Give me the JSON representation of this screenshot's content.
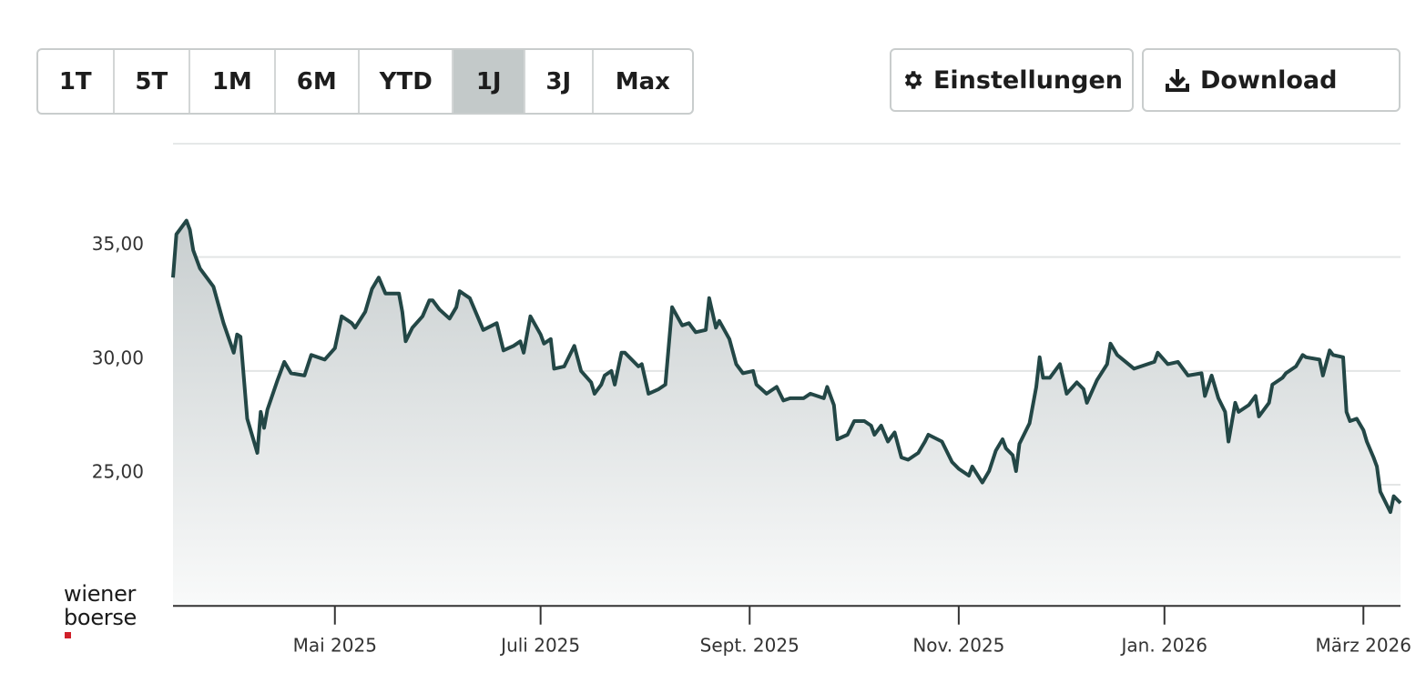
{
  "toolbar": {
    "ranges": [
      "1T",
      "5T",
      "1M",
      "6M",
      "YTD",
      "1J",
      "3J",
      "Max"
    ],
    "active_range": "1J",
    "settings": "Einstellungen",
    "download": "Download"
  },
  "logo": {
    "line1": "wiener",
    "line2": "boerse"
  },
  "chart_data": {
    "type": "line",
    "color": "#234746",
    "area": true,
    "grid": true,
    "x": [
      0,
      1,
      4,
      5,
      6,
      8,
      11,
      12,
      15,
      18,
      19,
      20,
      22,
      25,
      26,
      27,
      28,
      31,
      33,
      35,
      39,
      41,
      45,
      48,
      50,
      53,
      54,
      57,
      59,
      61,
      63,
      67,
      68,
      69,
      71,
      74,
      76,
      77,
      79,
      82,
      84,
      85,
      88,
      90,
      92,
      96,
      98,
      101,
      103,
      104,
      106,
      109,
      110,
      112,
      113,
      116,
      119,
      121,
      124,
      125,
      127,
      128,
      130,
      131,
      133,
      134,
      138,
      139,
      141,
      144,
      146,
      148,
      151,
      153,
      155,
      158,
      159,
      161,
      162,
      165,
      167,
      169,
      172,
      173,
      176,
      179,
      181,
      183,
      187,
      189,
      193,
      194,
      196,
      197,
      200,
      202,
      205,
      207,
      208,
      210,
      212,
      214,
      216,
      218,
      221,
      223,
      224,
      228,
      231,
      233,
      236,
      237,
      240,
      242,
      244,
      246,
      247,
      249,
      250,
      251,
      254,
      256,
      257,
      258,
      260,
      263,
      265,
      268,
      270,
      271,
      274,
      277,
      278,
      280,
      285,
      291,
      292,
      295,
      298,
      301,
      305,
      306,
      308,
      310,
      312,
      313,
      315,
      316,
      319,
      321,
      322,
      325,
      326,
      329,
      330,
      333,
      335,
      336,
      340,
      341,
      343,
      344,
      347,
      348,
      349,
      351,
      353,
      354,
      356,
      357,
      358,
      361,
      362,
      364
    ],
    "values": [
      34.1,
      36.0,
      36.6,
      36.2,
      35.3,
      34.5,
      33.9,
      33.7,
      32.1,
      30.8,
      31.6,
      31.5,
      27.9,
      26.4,
      28.2,
      27.5,
      28.3,
      29.6,
      30.4,
      29.9,
      29.8,
      30.7,
      30.5,
      31.0,
      32.4,
      32.1,
      31.9,
      32.6,
      33.6,
      34.1,
      33.4,
      33.4,
      32.6,
      31.3,
      31.9,
      32.4,
      33.1,
      33.1,
      32.7,
      32.3,
      32.8,
      33.5,
      33.2,
      32.5,
      31.8,
      32.1,
      30.9,
      31.1,
      31.3,
      30.8,
      32.4,
      31.6,
      31.2,
      31.4,
      30.1,
      30.2,
      31.1,
      30.0,
      29.5,
      29.0,
      29.4,
      29.8,
      30.0,
      29.4,
      30.8,
      30.8,
      30.2,
      30.3,
      29.0,
      29.2,
      29.4,
      32.8,
      32.0,
      32.1,
      31.7,
      31.8,
      33.2,
      31.9,
      32.2,
      31.4,
      30.3,
      29.9,
      30.0,
      29.4,
      29.0,
      29.3,
      28.7,
      28.8,
      28.8,
      29.0,
      28.8,
      29.3,
      28.5,
      27.0,
      27.2,
      27.8,
      27.8,
      27.6,
      27.2,
      27.6,
      26.9,
      27.3,
      26.2,
      26.1,
      26.4,
      26.9,
      27.2,
      26.9,
      26.0,
      25.7,
      25.4,
      25.8,
      25.1,
      25.6,
      26.5,
      27.0,
      26.6,
      26.3,
      25.6,
      26.8,
      27.7,
      29.3,
      30.6,
      29.7,
      29.7,
      30.3,
      29.0,
      29.5,
      29.2,
      28.6,
      29.6,
      30.3,
      31.2,
      30.7,
      30.1,
      30.4,
      30.8,
      30.3,
      30.4,
      29.8,
      29.9,
      28.9,
      29.8,
      28.8,
      28.2,
      26.9,
      28.6,
      28.2,
      28.5,
      28.9,
      28.0,
      28.6,
      29.4,
      29.7,
      29.9,
      30.2,
      30.7,
      30.6,
      30.5,
      29.8,
      30.9,
      30.7,
      30.6,
      28.2,
      27.8,
      27.9,
      27.4,
      26.9,
      26.2,
      25.8,
      24.7,
      23.8,
      24.5,
      24.2
    ],
    "xlim": [
      0,
      364
    ],
    "xticks": [
      {
        "value": 48,
        "label": "Mai 2025"
      },
      {
        "value": 109,
        "label": "Juli 2025"
      },
      {
        "value": 171,
        "label": "Sept. 2025"
      },
      {
        "value": 233,
        "label": "Nov. 2025"
      },
      {
        "value": 294,
        "label": "Jan. 2026"
      },
      {
        "value": 353,
        "label": "März 2026"
      }
    ],
    "ylim": [
      19.7,
      40
    ],
    "yticks": [
      {
        "value": 25,
        "label": "25,00"
      },
      {
        "value": 30,
        "label": "30,00"
      },
      {
        "value": 35,
        "label": "35,00"
      }
    ]
  }
}
